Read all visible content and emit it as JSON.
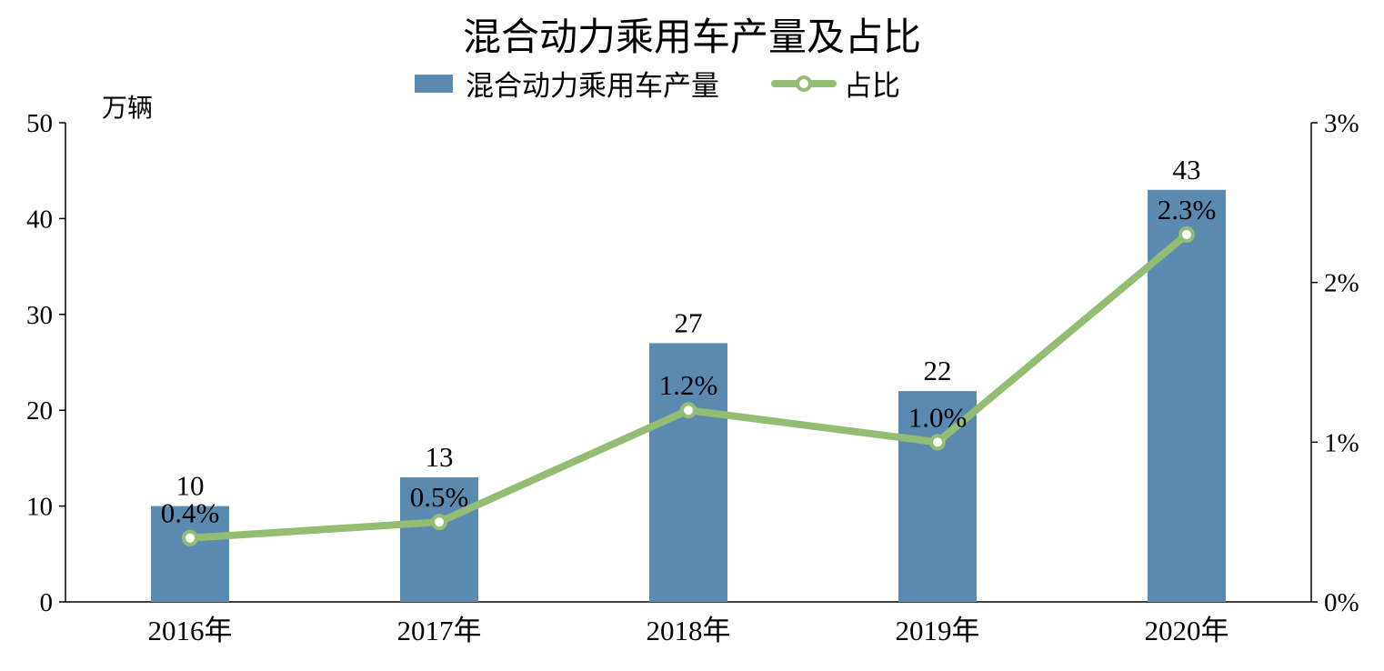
{
  "chart_data": {
    "type": "bar",
    "title": "混合动力乘用车产量及占比",
    "ylabel": "万辆",
    "categories": [
      "2016年",
      "2017年",
      "2018年",
      "2019年",
      "2020年"
    ],
    "series": [
      {
        "name": "混合动力乘用车产量",
        "type": "bar",
        "axis": "left",
        "color": "#5b8ab0",
        "values": [
          10,
          13,
          27,
          22,
          43
        ],
        "labels": [
          "10",
          "13",
          "27",
          "22",
          "43"
        ]
      },
      {
        "name": "占比",
        "type": "line",
        "axis": "right",
        "color": "#93bd72",
        "values": [
          0.4,
          0.5,
          1.2,
          1.0,
          2.3
        ],
        "labels": [
          "0.4%",
          "0.5%",
          "1.2%",
          "1.0%",
          "2.3%"
        ]
      }
    ],
    "y_left": {
      "range": [
        0,
        50
      ],
      "ticks": [
        "0",
        "10",
        "20",
        "30",
        "40",
        "50"
      ]
    },
    "y_right": {
      "range": [
        0,
        3
      ],
      "ticks": [
        "0%",
        "1%",
        "2%",
        "3%"
      ]
    },
    "grid": false,
    "legend_position": "top-center"
  }
}
